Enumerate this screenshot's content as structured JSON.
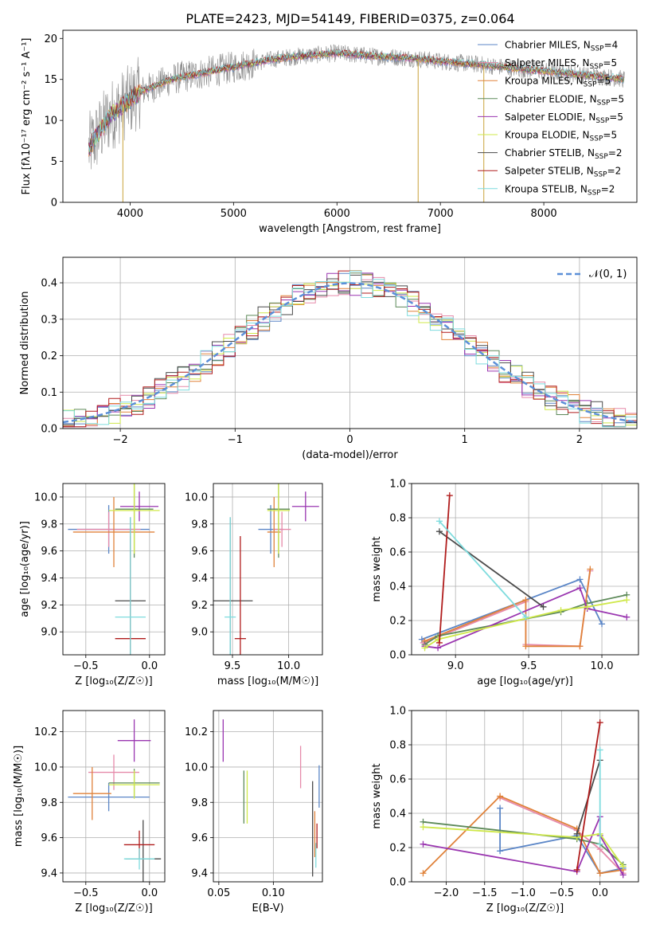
{
  "title": "PLATE=2423, MJD=54149, FIBERID=0375, z=0.064",
  "legend": [
    {
      "name": "Chabrier MILES, N_SSP=4",
      "base": "Chabrier MILES, N",
      "sub": "SSP",
      "tail": "=4",
      "color": "#5b86c7"
    },
    {
      "name": "Salpeter MILES, N_SSP=5",
      "base": "Salpeter MILES, N",
      "sub": "SSP",
      "tail": "=5",
      "color": "#e68aaa"
    },
    {
      "name": "Kroupa MILES, N_SSP=5",
      "base": "Kroupa MILES, N",
      "sub": "SSP",
      "tail": "=5",
      "color": "#e0823a"
    },
    {
      "name": "Chabrier ELODIE, N_SSP=5",
      "base": "Chabrier ELODIE, N",
      "sub": "SSP",
      "tail": "=5",
      "color": "#5e8a5a"
    },
    {
      "name": "Salpeter ELODIE, N_SSP=5",
      "base": "Salpeter ELODIE, N",
      "sub": "SSP",
      "tail": "=5",
      "color": "#9a36b0"
    },
    {
      "name": "Kroupa ELODIE, N_SSP=5",
      "base": "Kroupa ELODIE, N",
      "sub": "SSP",
      "tail": "=5",
      "color": "#cfe84a"
    },
    {
      "name": "Chabrier STELIB, N_SSP=2",
      "base": "Chabrier STELIB, N",
      "sub": "SSP",
      "tail": "=2",
      "color": "#4a4a4a"
    },
    {
      "name": "Salpeter STELIB, N_SSP=2",
      "base": "Salpeter STELIB, N",
      "sub": "SSP",
      "tail": "=2",
      "color": "#b01c1c"
    },
    {
      "name": "Kroupa STELIB, N_SSP=2",
      "base": "Kroupa STELIB, N",
      "sub": "SSP",
      "tail": "=2",
      "color": "#7fdcde"
    }
  ],
  "chart_data": [
    {
      "id": "spectrum",
      "type": "line",
      "xlabel": "wavelength [Angstrom, rest frame]",
      "ylabel": "Flux [fλ10⁻¹⁷ erg cm⁻² s⁻¹ A⁻¹]",
      "xlim": [
        3350,
        8900
      ],
      "ylim": [
        0,
        21
      ],
      "xticks": [
        4000,
        5000,
        6000,
        7000,
        8000
      ],
      "yticks": [
        0,
        5,
        10,
        15,
        20
      ],
      "grid": false,
      "legend_position": "right",
      "continuum": {
        "x": [
          3600,
          3700,
          3800,
          3900,
          4000,
          4100,
          4200,
          4300,
          4400,
          4500,
          4600,
          4800,
          5000,
          5200,
          5400,
          5600,
          5800,
          6000,
          6200,
          6400,
          6600,
          6800,
          7000,
          7200,
          7400,
          7600,
          7800,
          8000,
          8200,
          8400,
          8600,
          8800
        ],
        "y": [
          6.5,
          8.5,
          10.5,
          11.5,
          12.5,
          13.5,
          14.0,
          14.5,
          15.0,
          15.3,
          15.5,
          16.0,
          16.5,
          17.0,
          17.5,
          17.8,
          18.0,
          18.2,
          18.0,
          17.8,
          17.7,
          17.5,
          17.2,
          17.0,
          16.8,
          16.5,
          16.2,
          16.0,
          15.8,
          15.5,
          15.3,
          15.0
        ]
      },
      "drops": [
        {
          "x": 3930,
          "y": 0
        },
        {
          "x": 6785,
          "y": 0
        },
        {
          "x": 7420,
          "y": 0
        }
      ]
    },
    {
      "id": "residuals",
      "type": "histogram",
      "xlabel": "(data-model)/error",
      "ylabel": "Normed distribution",
      "xlim": [
        -2.5,
        2.5
      ],
      "ylim": [
        0,
        0.47
      ],
      "xticks": [
        -2,
        -1,
        0,
        1,
        2
      ],
      "yticks": [
        0.0,
        0.1,
        0.2,
        0.3,
        0.4
      ],
      "grid": true,
      "legend_position": "top-right",
      "reference": {
        "name": "𝒩(0, 1)",
        "mean": 0,
        "sigma": 1,
        "color": "#5b8fd8"
      }
    },
    {
      "id": "age-vs-z",
      "type": "errorbar",
      "xlabel": "Z [log₁₀(Z/Z☉)]",
      "ylabel": "age  [log₁₀(age/yr)]",
      "xlim": [
        -0.68,
        0.12
      ],
      "ylim": [
        8.83,
        10.1
      ],
      "xticks": [
        -0.5,
        0.0
      ],
      "yticks": [
        9.0,
        9.2,
        9.4,
        9.6,
        9.8,
        10.0
      ],
      "grid": true,
      "points": [
        {
          "series": 0,
          "x": -0.32,
          "xerr": 0.32,
          "y": 9.76,
          "yerr": 0.18
        },
        {
          "series": 1,
          "x": -0.32,
          "xerr": 0.25,
          "y": 9.76,
          "yerr": 0.13
        },
        {
          "series": 2,
          "x": -0.28,
          "xerr": 0.32,
          "y": 9.74,
          "yerr": 0.26
        },
        {
          "series": 3,
          "x": -0.12,
          "xerr": 0.15,
          "y": 9.91,
          "yerr": 0.36
        },
        {
          "series": 4,
          "x": -0.08,
          "xerr": 0.15,
          "y": 9.93,
          "yerr": 0.11
        },
        {
          "series": 5,
          "x": -0.12,
          "xerr": 0.2,
          "y": 9.9,
          "yerr": 0.32
        },
        {
          "series": 6,
          "x": -0.15,
          "xerr": 0.12,
          "y": 9.23,
          "yerr": 0.62
        },
        {
          "series": 7,
          "x": -0.15,
          "xerr": 0.12,
          "y": 8.95,
          "yerr": 0.76
        },
        {
          "series": 8,
          "x": -0.15,
          "xerr": 0.12,
          "y": 9.11,
          "yerr": 0.74
        }
      ]
    },
    {
      "id": "age-vs-mass",
      "type": "errorbar",
      "xlabel": "mass [log₁₀(M/M☉)]",
      "xlim": [
        9.33,
        10.3
      ],
      "ylim": [
        8.83,
        10.1
      ],
      "xticks": [
        9.5,
        10.0
      ],
      "yticks": [
        9.0,
        9.2,
        9.4,
        9.6,
        9.8,
        10.0
      ],
      "grid": true,
      "points": [
        {
          "series": 0,
          "x": 9.84,
          "xerr": 0.11,
          "y": 9.76,
          "yerr": 0.18
        },
        {
          "series": 1,
          "x": 9.94,
          "xerr": 0.08,
          "y": 9.76,
          "yerr": 0.13
        },
        {
          "series": 2,
          "x": 9.87,
          "xerr": 0.06,
          "y": 9.74,
          "yerr": 0.26
        },
        {
          "series": 3,
          "x": 9.91,
          "xerr": 0.1,
          "y": 9.91,
          "yerr": 0.36
        },
        {
          "series": 4,
          "x": 10.15,
          "xerr": 0.12,
          "y": 9.93,
          "yerr": 0.11
        },
        {
          "series": 5,
          "x": 9.91,
          "xerr": 0.1,
          "y": 9.9,
          "yerr": 0.32
        },
        {
          "series": 6,
          "x": 9.48,
          "xerr": 0.2,
          "y": 9.23,
          "yerr": 0.62
        },
        {
          "series": 7,
          "x": 9.57,
          "xerr": 0.05,
          "y": 8.95,
          "yerr": 0.76
        },
        {
          "series": 8,
          "x": 9.48,
          "xerr": 0.05,
          "y": 9.11,
          "yerr": 0.74
        }
      ]
    },
    {
      "id": "weight-vs-age",
      "type": "line",
      "xlabel": "age  [log₁₀(age/yr)]",
      "ylabel": "mass weight",
      "xlim": [
        8.7,
        10.25
      ],
      "ylim": [
        0,
        1
      ],
      "xticks": [
        9.0,
        9.5,
        10.0
      ],
      "yticks": [
        0.0,
        0.2,
        0.4,
        0.6,
        0.8,
        1.0
      ],
      "grid": true,
      "series": [
        {
          "series": 0,
          "points": [
            [
              8.77,
              0.09
            ],
            [
              9.85,
              0.44
            ],
            [
              10.0,
              0.18
            ]
          ]
        },
        {
          "series": 1,
          "points": [
            [
              8.78,
              0.07
            ],
            [
              9.48,
              0.31
            ],
            [
              9.48,
              0.06
            ],
            [
              9.85,
              0.05
            ],
            [
              9.92,
              0.49
            ]
          ]
        },
        {
          "series": 2,
          "points": [
            [
              8.79,
              0.08
            ],
            [
              9.48,
              0.32
            ],
            [
              9.48,
              0.05
            ],
            [
              9.85,
              0.05
            ],
            [
              9.92,
              0.5
            ]
          ]
        },
        {
          "series": 3,
          "points": [
            [
              8.79,
              0.06
            ],
            [
              8.88,
              0.11
            ],
            [
              9.72,
              0.25
            ],
            [
              9.9,
              0.3
            ],
            [
              10.17,
              0.35
            ]
          ]
        },
        {
          "series": 4,
          "points": [
            [
              8.79,
              0.05
            ],
            [
              8.88,
              0.04
            ],
            [
              9.85,
              0.39
            ],
            [
              9.9,
              0.27
            ],
            [
              10.17,
              0.22
            ]
          ]
        },
        {
          "series": 5,
          "points": [
            [
              8.79,
              0.04
            ],
            [
              8.88,
              0.09
            ],
            [
              9.72,
              0.26
            ],
            [
              9.9,
              0.28
            ],
            [
              10.17,
              0.32
            ]
          ]
        },
        {
          "series": 6,
          "points": [
            [
              8.89,
              0.72
            ],
            [
              9.6,
              0.28
            ]
          ]
        },
        {
          "series": 7,
          "points": [
            [
              8.89,
              0.07
            ],
            [
              8.96,
              0.93
            ]
          ]
        },
        {
          "series": 8,
          "points": [
            [
              8.89,
              0.78
            ],
            [
              9.48,
              0.22
            ]
          ]
        }
      ]
    },
    {
      "id": "mass-vs-z",
      "type": "errorbar",
      "xlabel": "Z [log₁₀(Z/Z☉)]",
      "ylabel": "mass [log₁₀(M/M☉)]",
      "xlim": [
        -0.68,
        0.12
      ],
      "ylim": [
        9.35,
        10.32
      ],
      "xticks": [
        -0.5,
        0.0
      ],
      "yticks": [
        9.4,
        9.6,
        9.8,
        10.0,
        10.2
      ],
      "grid": true,
      "points": [
        {
          "series": 0,
          "x": -0.32,
          "xerr": 0.32,
          "y": 9.83,
          "yerr": 0.08
        },
        {
          "series": 1,
          "x": -0.28,
          "xerr": 0.2,
          "y": 9.97,
          "yerr": 0.1
        },
        {
          "series": 2,
          "x": -0.45,
          "xerr": 0.15,
          "y": 9.85,
          "yerr": 0.15
        },
        {
          "series": 3,
          "x": -0.12,
          "xerr": 0.2,
          "y": 9.91,
          "yerr": 0.08
        },
        {
          "series": 4,
          "x": -0.12,
          "xerr": 0.13,
          "y": 10.15,
          "yerr": 0.12
        },
        {
          "series": 5,
          "x": -0.12,
          "xerr": 0.2,
          "y": 9.9,
          "yerr": 0.08
        },
        {
          "series": 6,
          "x": -0.05,
          "xerr": 0.14,
          "y": 9.48,
          "yerr": 0.22
        },
        {
          "series": 7,
          "x": -0.08,
          "xerr": 0.12,
          "y": 9.56,
          "yerr": 0.08
        },
        {
          "series": 8,
          "x": -0.08,
          "xerr": 0.12,
          "y": 9.48,
          "yerr": 0.06
        }
      ]
    },
    {
      "id": "mass-vs-ebv",
      "type": "errorbar",
      "xlabel": "E(B-V)",
      "xlim": [
        0.045,
        0.145
      ],
      "ylim": [
        9.35,
        10.32
      ],
      "xticks": [
        0.05,
        0.1
      ],
      "yticks": [
        9.4,
        9.6,
        9.8,
        10.0,
        10.2
      ],
      "grid": true,
      "points": [
        {
          "series": 0,
          "x": 0.142,
          "xerr": 0.0,
          "y": 9.89,
          "yerr": 0.12
        },
        {
          "series": 1,
          "x": 0.125,
          "xerr": 0.0,
          "y": 10.0,
          "yerr": 0.12
        },
        {
          "series": 2,
          "x": 0.138,
          "xerr": 0.0,
          "y": 9.62,
          "yerr": 0.13
        },
        {
          "series": 3,
          "x": 0.073,
          "xerr": 0.0,
          "y": 9.83,
          "yerr": 0.15
        },
        {
          "series": 4,
          "x": 0.054,
          "xerr": 0.0,
          "y": 10.15,
          "yerr": 0.12
        },
        {
          "series": 5,
          "x": 0.076,
          "xerr": 0.0,
          "y": 9.83,
          "yerr": 0.15
        },
        {
          "series": 6,
          "x": 0.136,
          "xerr": 0.0,
          "y": 9.65,
          "yerr": 0.27
        },
        {
          "series": 7,
          "x": 0.14,
          "xerr": 0.0,
          "y": 9.61,
          "yerr": 0.07
        },
        {
          "series": 8,
          "x": 0.139,
          "xerr": 0.0,
          "y": 9.5,
          "yerr": 0.07
        }
      ]
    },
    {
      "id": "weight-vs-z",
      "type": "line",
      "xlabel": "Z [log₁₀(Z/Z☉)]",
      "ylabel": "mass weight",
      "xlim": [
        -2.45,
        0.5
      ],
      "ylim": [
        0,
        1
      ],
      "xticks": [
        -2.0,
        -1.5,
        -1.0,
        -0.5,
        0.0
      ],
      "yticks": [
        0.0,
        0.2,
        0.4,
        0.6,
        0.8,
        1.0
      ],
      "grid": true,
      "series": [
        {
          "series": 0,
          "points": [
            [
              -1.3,
              0.43
            ],
            [
              -1.3,
              0.18
            ],
            [
              -0.3,
              0.27
            ],
            [
              0.0,
              0.05
            ],
            [
              0.3,
              0.08
            ]
          ]
        },
        {
          "series": 1,
          "points": [
            [
              -1.3,
              0.49
            ],
            [
              -0.3,
              0.3
            ],
            [
              0.0,
              0.19
            ],
            [
              0.3,
              0.05
            ]
          ]
        },
        {
          "series": 2,
          "points": [
            [
              -2.3,
              0.05
            ],
            [
              -1.3,
              0.5
            ],
            [
              -0.3,
              0.31
            ],
            [
              0.0,
              0.05
            ],
            [
              0.3,
              0.07
            ]
          ]
        },
        {
          "series": 3,
          "points": [
            [
              -2.3,
              0.35
            ],
            [
              -0.3,
              0.25
            ],
            [
              0.0,
              0.22
            ],
            [
              0.3,
              0.1
            ]
          ]
        },
        {
          "series": 4,
          "points": [
            [
              -2.3,
              0.22
            ],
            [
              -0.3,
              0.06
            ],
            [
              0.0,
              0.38
            ],
            [
              0.0,
              0.27
            ],
            [
              0.3,
              0.04
            ]
          ]
        },
        {
          "series": 5,
          "points": [
            [
              -2.3,
              0.32
            ],
            [
              -0.3,
              0.26
            ],
            [
              0.0,
              0.28
            ],
            [
              0.3,
              0.09
            ]
          ]
        },
        {
          "series": 6,
          "points": [
            [
              -0.3,
              0.28
            ],
            [
              0.0,
              0.71
            ]
          ]
        },
        {
          "series": 7,
          "points": [
            [
              -0.3,
              0.07
            ],
            [
              0.0,
              0.93
            ]
          ]
        },
        {
          "series": 8,
          "points": [
            [
              0.0,
              0.22
            ],
            [
              0.0,
              0.77
            ]
          ]
        }
      ]
    }
  ]
}
